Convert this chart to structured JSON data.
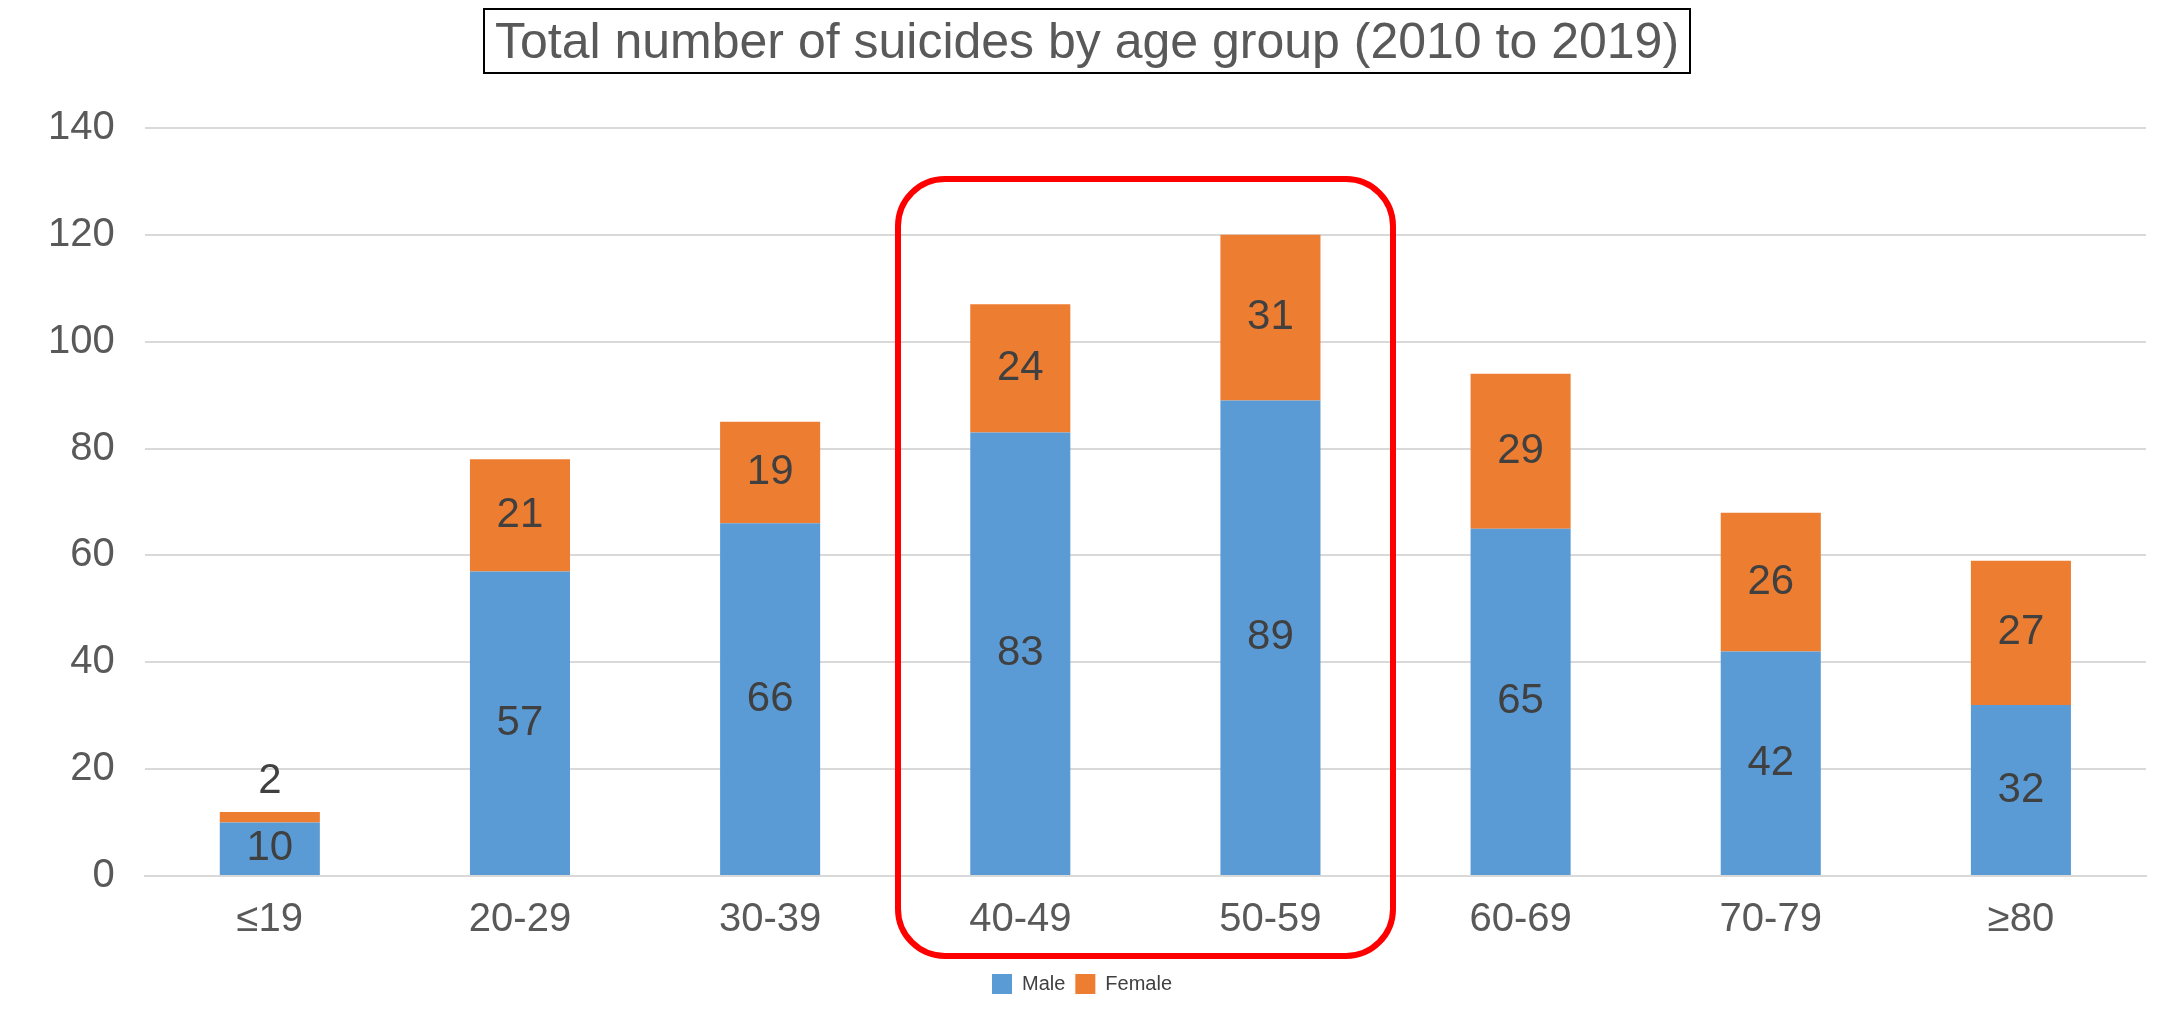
{
  "chart_data": {
    "type": "bar",
    "title": "Total number of suicides by age group (2010 to 2019)",
    "categories": [
      "≤19",
      "20-29",
      "30-39",
      "40-49",
      "50-59",
      "60-69",
      "70-79",
      "≥80"
    ],
    "stacked": true,
    "series": [
      {
        "name": "Male",
        "color": "#5b9bd5",
        "values": [
          10,
          57,
          66,
          83,
          89,
          65,
          42,
          32
        ]
      },
      {
        "name": "Female",
        "color": "#ed7d31",
        "values": [
          2,
          21,
          19,
          24,
          31,
          29,
          26,
          27
        ]
      }
    ],
    "ylim": [
      0,
      140
    ],
    "yticks": [
      0,
      20,
      40,
      60,
      80,
      100,
      120,
      140
    ],
    "grid": "y",
    "legend": "bottom",
    "data_labels": true
  }
}
